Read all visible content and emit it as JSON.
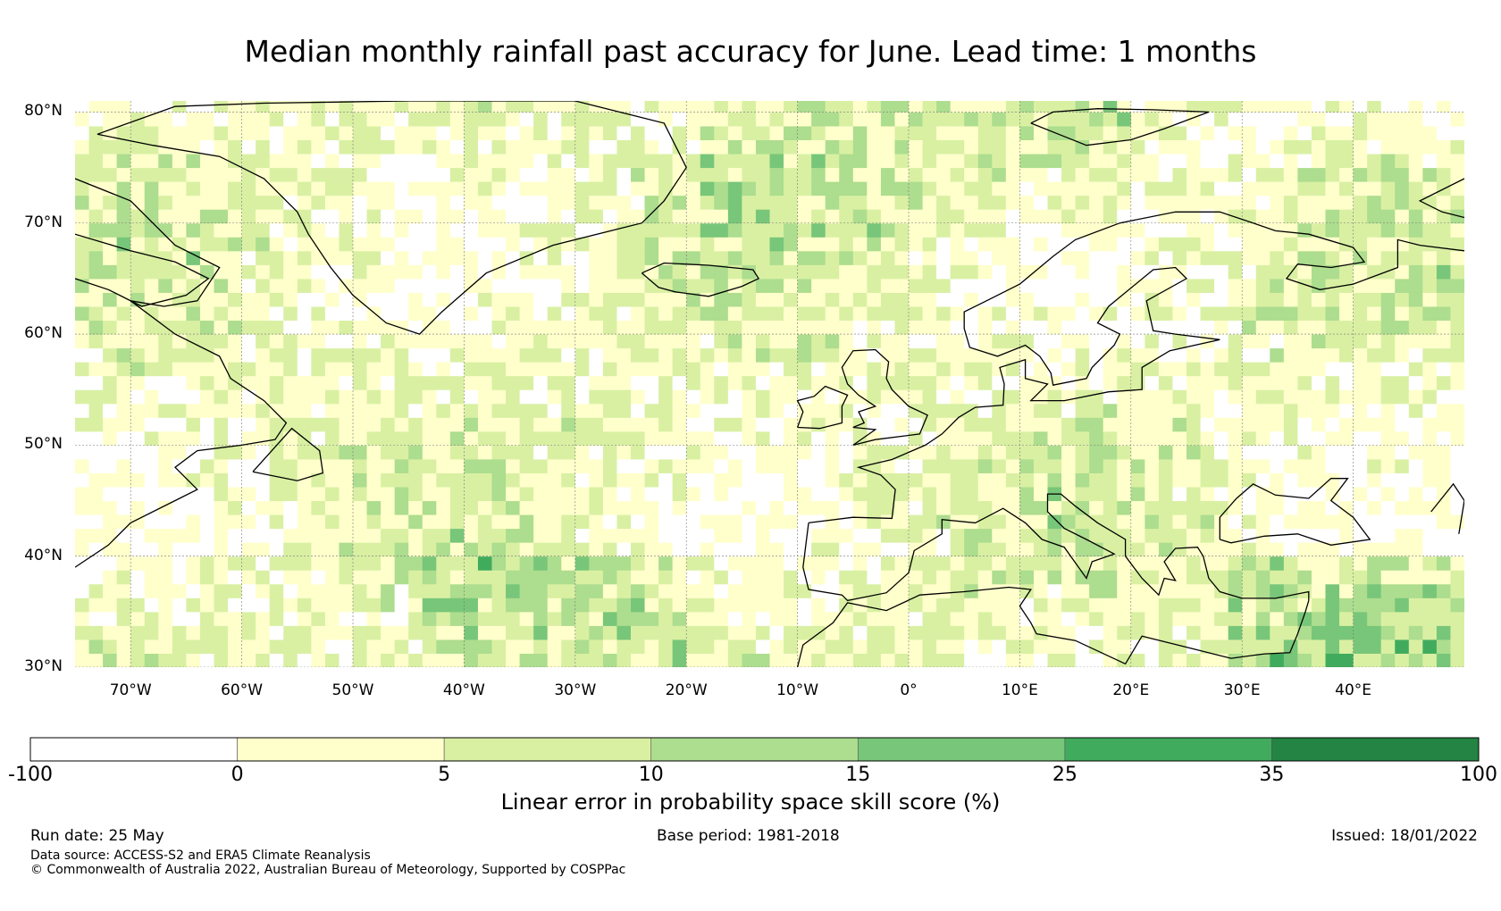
{
  "title": "Median monthly rainfall past accuracy for June. Lead time: 1 months",
  "map": {
    "lat_range": [
      30,
      81
    ],
    "lon_range": [
      -75,
      50
    ],
    "lat_labels": [
      "80°N",
      "70°N",
      "60°N",
      "50°N",
      "40°N",
      "30°N"
    ],
    "lat_values": [
      80,
      70,
      60,
      50,
      40,
      30
    ],
    "lon_labels": [
      "70°W",
      "60°W",
      "50°W",
      "40°W",
      "30°W",
      "20°W",
      "10°W",
      "0°",
      "10°E",
      "20°E",
      "30°E",
      "40°E"
    ],
    "lon_values": [
      -70,
      -60,
      -50,
      -40,
      -30,
      -20,
      -10,
      0,
      10,
      20,
      30,
      40
    ],
    "grid": true,
    "ocean_land_background": "#f2f6d8"
  },
  "colorbar": {
    "ticks": [
      "-100",
      "0",
      "5",
      "10",
      "15",
      "25",
      "35",
      "100"
    ],
    "colors": [
      "#ffffff",
      "#ffffcc",
      "#d9f0a3",
      "#addd8e",
      "#78c679",
      "#41ab5d",
      "#238443"
    ],
    "label": "Linear error in probability space skill score (%)"
  },
  "footer": {
    "run_date": "Run date: 25 May",
    "base_period": "Base period: 1981-2018",
    "issued": "Issued: 18/01/2022",
    "data_source": "Data source: ACCESS-S2 and ERA5 Climate Reanalysis",
    "copyright": "© Commonwealth of Australia 2022, Australian Bureau of Meteorology, Supported by COSPPac"
  }
}
